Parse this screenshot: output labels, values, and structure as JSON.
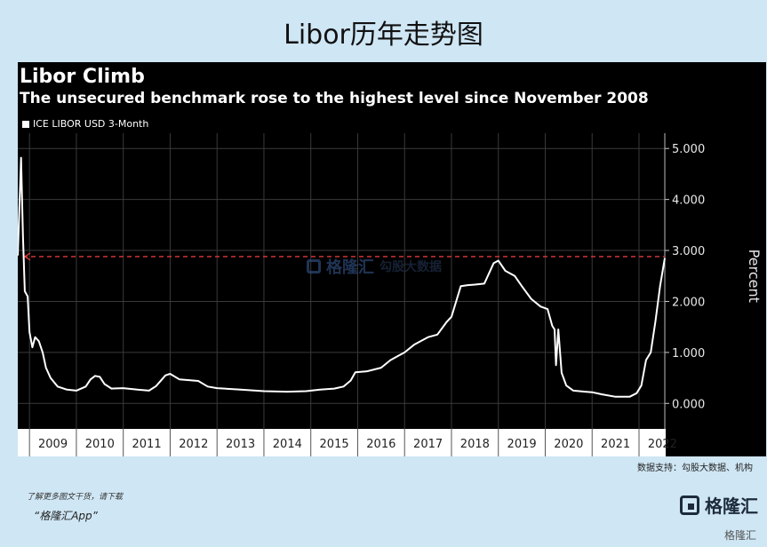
{
  "page": {
    "title": "Libor历年走势图",
    "source": "数据支持：勾股大数据、机构",
    "footer_note": "了解更多图文干货，请下载",
    "footer_app": "“格隆汇App”",
    "logo_text": "格隆汇",
    "watermark_text": "格隆汇",
    "watermark_secondary": "勾股大数据",
    "small_logo_tag": "格隆汇"
  },
  "colors": {
    "background": "#cfe6f4",
    "panel": "#000000",
    "line": "#ffffff",
    "reference_line": "#e03a3a",
    "grid": "#3a3a3a"
  },
  "chart_data": {
    "type": "line",
    "title": "Libor Climb",
    "subtitle": "The unsecured benchmark rose to the highest level since November 2008",
    "ylabel": "Percent",
    "xlabel": "",
    "ylim": [
      -0.5,
      5.3
    ],
    "xlim": [
      2008.75,
      2022.55
    ],
    "y_axis_side": "right",
    "yticks": [
      0.0,
      1.0,
      2.0,
      3.0,
      4.0,
      5.0
    ],
    "ytick_labels": [
      "0.000",
      "1.000",
      "2.000",
      "3.000",
      "4.000",
      "5.000"
    ],
    "xtick_labels": [
      "2009",
      "2010",
      "2011",
      "2012",
      "2013",
      "2014",
      "2015",
      "2016",
      "2017",
      "2018",
      "2019",
      "2020",
      "2021",
      "2022"
    ],
    "grid": true,
    "reference_line": {
      "y": 2.88,
      "style": "dashed",
      "color": "#e03a3a"
    },
    "series": [
      {
        "name": "ICE LIBOR USD 3-Month",
        "points": [
          [
            2008.75,
            2.9
          ],
          [
            2008.82,
            4.82
          ],
          [
            2008.86,
            3.3
          ],
          [
            2008.9,
            2.2
          ],
          [
            2008.96,
            2.1
          ],
          [
            2009.0,
            1.4
          ],
          [
            2009.06,
            1.1
          ],
          [
            2009.12,
            1.3
          ],
          [
            2009.2,
            1.22
          ],
          [
            2009.28,
            1.0
          ],
          [
            2009.35,
            0.7
          ],
          [
            2009.45,
            0.5
          ],
          [
            2009.6,
            0.33
          ],
          [
            2009.8,
            0.27
          ],
          [
            2010.0,
            0.25
          ],
          [
            2010.2,
            0.33
          ],
          [
            2010.3,
            0.47
          ],
          [
            2010.4,
            0.54
          ],
          [
            2010.5,
            0.52
          ],
          [
            2010.6,
            0.38
          ],
          [
            2010.75,
            0.29
          ],
          [
            2011.0,
            0.3
          ],
          [
            2011.3,
            0.27
          ],
          [
            2011.55,
            0.25
          ],
          [
            2011.7,
            0.34
          ],
          [
            2011.9,
            0.55
          ],
          [
            2012.0,
            0.58
          ],
          [
            2012.2,
            0.47
          ],
          [
            2012.6,
            0.44
          ],
          [
            2012.8,
            0.33
          ],
          [
            2013.0,
            0.3
          ],
          [
            2013.5,
            0.27
          ],
          [
            2014.0,
            0.24
          ],
          [
            2014.5,
            0.23
          ],
          [
            2014.9,
            0.24
          ],
          [
            2015.2,
            0.27
          ],
          [
            2015.5,
            0.29
          ],
          [
            2015.7,
            0.33
          ],
          [
            2015.85,
            0.45
          ],
          [
            2015.95,
            0.61
          ],
          [
            2016.2,
            0.63
          ],
          [
            2016.5,
            0.7
          ],
          [
            2016.7,
            0.85
          ],
          [
            2016.9,
            0.95
          ],
          [
            2017.0,
            1.0
          ],
          [
            2017.2,
            1.15
          ],
          [
            2017.5,
            1.3
          ],
          [
            2017.7,
            1.35
          ],
          [
            2017.9,
            1.6
          ],
          [
            2018.0,
            1.7
          ],
          [
            2018.2,
            2.3
          ],
          [
            2018.35,
            2.32
          ],
          [
            2018.5,
            2.33
          ],
          [
            2018.7,
            2.35
          ],
          [
            2018.9,
            2.75
          ],
          [
            2019.0,
            2.8
          ],
          [
            2019.15,
            2.6
          ],
          [
            2019.35,
            2.5
          ],
          [
            2019.5,
            2.3
          ],
          [
            2019.7,
            2.05
          ],
          [
            2019.9,
            1.9
          ],
          [
            2020.05,
            1.85
          ],
          [
            2020.15,
            1.52
          ],
          [
            2020.2,
            1.45
          ],
          [
            2020.23,
            0.75
          ],
          [
            2020.28,
            1.45
          ],
          [
            2020.35,
            0.6
          ],
          [
            2020.45,
            0.35
          ],
          [
            2020.6,
            0.25
          ],
          [
            2020.85,
            0.23
          ],
          [
            2021.0,
            0.22
          ],
          [
            2021.2,
            0.18
          ],
          [
            2021.5,
            0.13
          ],
          [
            2021.8,
            0.13
          ],
          [
            2021.95,
            0.2
          ],
          [
            2022.05,
            0.35
          ],
          [
            2022.15,
            0.85
          ],
          [
            2022.25,
            1.0
          ],
          [
            2022.35,
            1.6
          ],
          [
            2022.45,
            2.3
          ],
          [
            2022.55,
            2.85
          ]
        ]
      }
    ]
  }
}
